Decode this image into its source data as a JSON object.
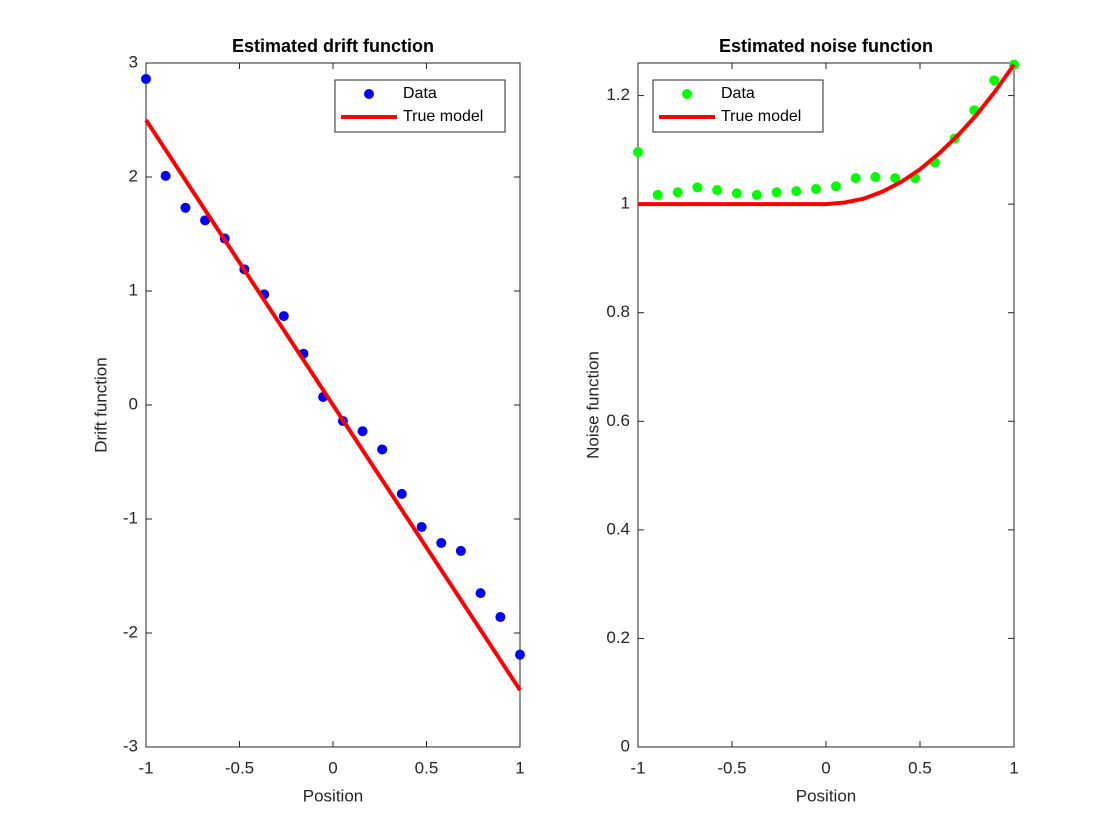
{
  "chart_data": [
    {
      "type": "scatter",
      "title": "Estimated drift function",
      "xlabel": "Position",
      "ylabel": "Drift function",
      "xlim": [
        -1,
        1
      ],
      "xticks": [
        -1,
        -0.5,
        0,
        0.5,
        1
      ],
      "ylim": [
        -3,
        3
      ],
      "yticks": [
        -3,
        -2,
        -1,
        0,
        1,
        2,
        3
      ],
      "grid": false,
      "legend": "northeast",
      "series": [
        {
          "name": "Data",
          "color": "#0000ff",
          "mode": "markers",
          "x": [
            -1,
            -0.895,
            -0.789,
            -0.684,
            -0.579,
            -0.474,
            -0.368,
            -0.263,
            -0.158,
            -0.053,
            0.053,
            0.158,
            0.263,
            0.368,
            0.474,
            0.579,
            0.684,
            0.789,
            0.895,
            1
          ],
          "values": [
            2.86,
            2.01,
            1.73,
            1.62,
            1.46,
            1.19,
            0.97,
            0.78,
            0.45,
            0.07,
            -0.14,
            -0.23,
            -0.39,
            -0.78,
            -1.07,
            -1.21,
            -1.28,
            -1.65,
            -1.86,
            -2.19
          ]
        },
        {
          "name": "True model",
          "color": "#ff0000",
          "mode": "line",
          "x": [
            -1,
            1
          ],
          "values": [
            2.5,
            -2.5
          ]
        }
      ]
    },
    {
      "type": "scatter",
      "title": "Estimated noise function",
      "xlabel": "Position",
      "ylabel": "Noise function",
      "xlim": [
        -1,
        1
      ],
      "xticks": [
        -1,
        -0.5,
        0,
        0.5,
        1
      ],
      "ylim": [
        0,
        1.26
      ],
      "yticks": [
        0,
        0.2,
        0.4,
        0.6,
        0.8,
        1,
        1.2
      ],
      "grid": false,
      "legend": "northwest",
      "series": [
        {
          "name": "Data",
          "color": "#00ff00",
          "mode": "markers",
          "x": [
            -1,
            -0.895,
            -0.789,
            -0.684,
            -0.579,
            -0.474,
            -0.368,
            -0.263,
            -0.158,
            -0.053,
            0.053,
            0.158,
            0.263,
            0.368,
            0.474,
            0.579,
            0.684,
            0.789,
            0.895,
            1
          ],
          "values": [
            1.096,
            1.017,
            1.022,
            1.031,
            1.026,
            1.02,
            1.017,
            1.022,
            1.024,
            1.028,
            1.033,
            1.048,
            1.05,
            1.048,
            1.048,
            1.077,
            1.121,
            1.173,
            1.228,
            1.257
          ]
        },
        {
          "name": "True model",
          "color": "#ff0000",
          "mode": "line",
          "x": [
            -1,
            -0.5,
            0,
            0.1,
            0.2,
            0.3,
            0.4,
            0.5,
            0.6,
            0.7,
            0.8,
            0.9,
            1
          ],
          "values": [
            1,
            1,
            1,
            1.003,
            1.01,
            1.023,
            1.041,
            1.064,
            1.093,
            1.126,
            1.164,
            1.208,
            1.257
          ]
        }
      ]
    }
  ]
}
